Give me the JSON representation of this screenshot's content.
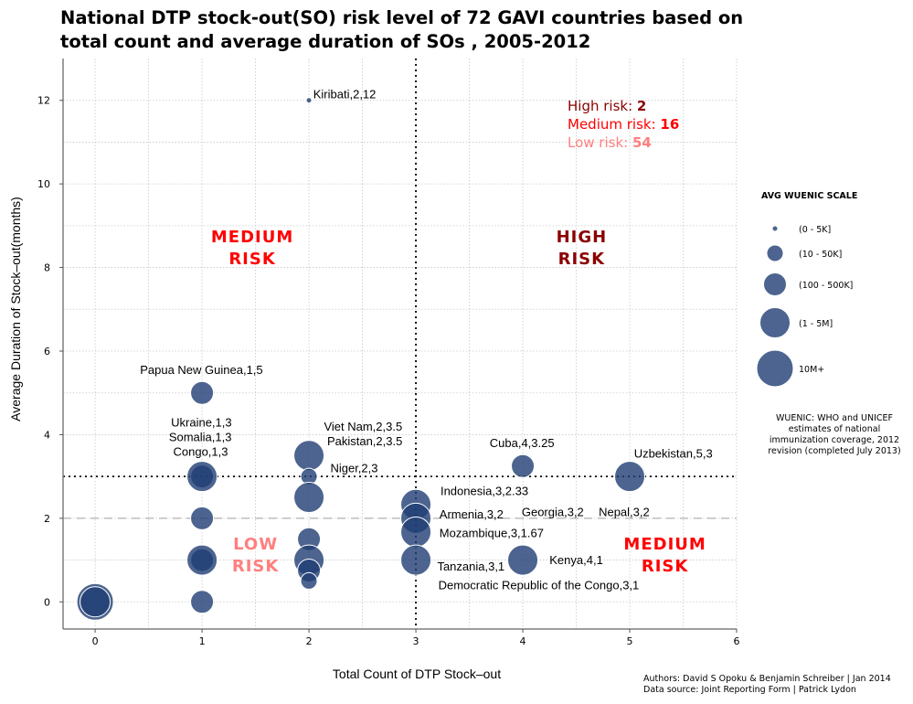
{
  "chart_data": {
    "type": "scatter",
    "title_lines": [
      "National DTP stock-out(SO) risk level of 72 GAVI countries based on",
      "total count and average duration of SOs , 2005-2012"
    ],
    "xlabel": "Total Count of DTP Stock–out",
    "ylabel": "Average Duration of Stock–out(months)",
    "xlim": [
      -0.3,
      6
    ],
    "ylim": [
      -0.65,
      13
    ],
    "x_ticks": [
      0,
      1,
      2,
      3,
      4,
      5,
      6
    ],
    "y_ticks": [
      0,
      2,
      4,
      6,
      8,
      10,
      12
    ],
    "grid": true,
    "marker_color": "#1f3d73",
    "thresholds": {
      "x_dotted": 3,
      "y_dotted": 3,
      "y_dashed": 2
    },
    "points": [
      {
        "x": 0,
        "y": 0,
        "size": "10M+"
      },
      {
        "x": 0,
        "y": 0,
        "size": "1 - 5M"
      },
      {
        "x": 1,
        "y": 0,
        "size": "100 - 500K"
      },
      {
        "x": 1,
        "y": 1,
        "size": "100 - 500K"
      },
      {
        "x": 1,
        "y": 1,
        "size": "1 - 5M"
      },
      {
        "x": 1,
        "y": 2,
        "size": "100 - 500K"
      },
      {
        "x": 1,
        "y": 3,
        "size": "100 - 500K"
      },
      {
        "x": 1,
        "y": 3,
        "size": "1 - 5M"
      },
      {
        "x": 1,
        "y": 5,
        "size": "100 - 500K"
      },
      {
        "x": 2,
        "y": 12,
        "size": "0 - 5K"
      },
      {
        "x": 2,
        "y": 3.5,
        "size": "1 - 5M"
      },
      {
        "x": 2,
        "y": 3,
        "size": "10 - 50K"
      },
      {
        "x": 2,
        "y": 2.5,
        "size": "1 - 5M"
      },
      {
        "x": 2,
        "y": 1.5,
        "size": "100 - 500K"
      },
      {
        "x": 2,
        "y": 1,
        "size": "1 - 5M"
      },
      {
        "x": 2,
        "y": 0.75,
        "size": "100 - 500K"
      },
      {
        "x": 2,
        "y": 0.5,
        "size": "10 - 50K"
      },
      {
        "x": 3,
        "y": 2.33,
        "size": "1 - 5M"
      },
      {
        "x": 3,
        "y": 2,
        "size": "1 - 5M"
      },
      {
        "x": 3,
        "y": 1.67,
        "size": "1 - 5M"
      },
      {
        "x": 3,
        "y": 1,
        "size": "1 - 5M"
      },
      {
        "x": 4,
        "y": 3.25,
        "size": "100 - 500K"
      },
      {
        "x": 4,
        "y": 1,
        "size": "1 - 5M"
      },
      {
        "x": 5,
        "y": 3,
        "size": "1 - 5M"
      }
    ],
    "point_labels": [
      {
        "text": "Kiribati,2,12",
        "x": 2.04,
        "y": 12.05,
        "anchor": "start"
      },
      {
        "text": "Papua New Guinea,1,5",
        "x": 0.42,
        "y": 5.45,
        "anchor": "start"
      },
      {
        "text": "Ukraine,1,3",
        "x": 0.71,
        "y": 4.2,
        "anchor": "start"
      },
      {
        "text": "Somalia,1,3",
        "x": 0.69,
        "y": 3.85,
        "anchor": "start"
      },
      {
        "text": "Congo,1,3",
        "x": 0.73,
        "y": 3.5,
        "anchor": "start"
      },
      {
        "text": "Viet Nam,2,3.5",
        "x": 2.14,
        "y": 4.1,
        "anchor": "start"
      },
      {
        "text": "Pakistan,2,3.5",
        "x": 2.17,
        "y": 3.75,
        "anchor": "start"
      },
      {
        "text": "Niger,2,3",
        "x": 2.2,
        "y": 3.1,
        "anchor": "start"
      },
      {
        "text": "Indonesia,3,2.33",
        "x": 3.23,
        "y": 2.55,
        "anchor": "start"
      },
      {
        "text": "Armenia,3,2",
        "x": 3.22,
        "y": 2.0,
        "anchor": "start"
      },
      {
        "text": "Mozambique,3,1.67",
        "x": 3.22,
        "y": 1.55,
        "anchor": "start"
      },
      {
        "text": "Tanzania,3,1",
        "x": 3.2,
        "y": 0.75,
        "anchor": "start"
      },
      {
        "text": "Democratic Republic of the Congo,3,1",
        "x": 3.21,
        "y": 0.3,
        "anchor": "start"
      },
      {
        "text": "Georgia,3,2",
        "x": 3.99,
        "y": 2.05,
        "anchor": "start"
      },
      {
        "text": "Nepal,3,2",
        "x": 4.71,
        "y": 2.05,
        "anchor": "start"
      },
      {
        "text": "Cuba,4,3.25",
        "x": 3.69,
        "y": 3.7,
        "anchor": "start"
      },
      {
        "text": "Kenya,4,1",
        "x": 4.25,
        "y": 0.9,
        "anchor": "start"
      },
      {
        "text": "Uzbekistan,5,3",
        "x": 5.04,
        "y": 3.45,
        "anchor": "start"
      }
    ],
    "regions": [
      {
        "lines": [
          "MEDIUM",
          "RISK"
        ],
        "x": 1.47,
        "y": 8.6,
        "color": "#ff0000"
      },
      {
        "lines": [
          "HIGH",
          "RISK"
        ],
        "x": 4.55,
        "y": 8.6,
        "color": "#8b0000"
      },
      {
        "lines": [
          "LOW",
          "RISK"
        ],
        "x": 1.5,
        "y": 1.25,
        "color": "#ff7f7f"
      },
      {
        "lines": [
          "MEDIUM",
          "RISK"
        ],
        "x": 5.33,
        "y": 1.25,
        "color": "#ff0000"
      }
    ],
    "summary": [
      {
        "label": "High risk:",
        "value": "2",
        "color": "#8b0000"
      },
      {
        "label": "Medium risk:",
        "value": "16",
        "color": "#ff0000"
      },
      {
        "label": "Low risk:",
        "value": "54",
        "color": "#ff7f7f"
      }
    ],
    "legend": {
      "title": "AVG WUENIC SCALE",
      "placement": "right",
      "items": [
        {
          "label": "(0 - 5K]",
          "size": "0 - 5K"
        },
        {
          "label": "(10 - 50K]",
          "size": "10 - 50K"
        },
        {
          "label": "(100 - 500K]",
          "size": "100 - 500K"
        },
        {
          "label": "(1 - 5M]",
          "size": "1 - 5M"
        },
        {
          "label": "10M+",
          "size": "10M+"
        }
      ]
    },
    "note_lines": [
      "WUENIC: WHO and UNICEF",
      "estimates of national",
      "immunization coverage, 2012",
      "revision (completed July 2013)"
    ],
    "credit_lines": [
      "Authors: David S Opoku & Benjamin Schreiber | Jan 2014",
      "Data source: Joint Reporting Form | Patrick Lydon"
    ]
  }
}
